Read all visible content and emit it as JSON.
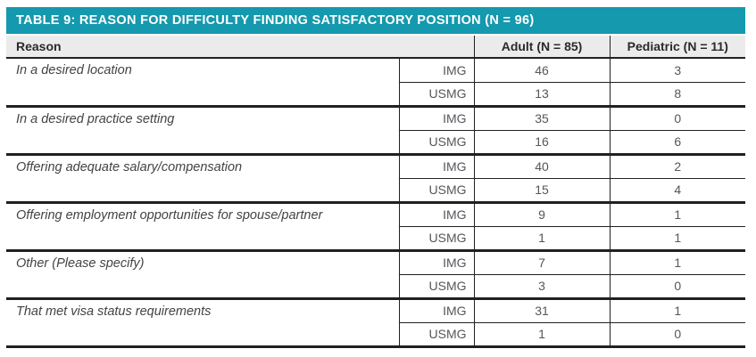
{
  "table": {
    "title": "TABLE 9: REASON FOR DIFFICULTY FINDING SATISFACTORY POSITION (N = 96)",
    "headers": {
      "reason": "Reason",
      "adult": "Adult (N = 85)",
      "pediatric": "Pediatric (N = 11)"
    },
    "type_labels": {
      "img": "IMG",
      "usmg": "USMG"
    },
    "rows": [
      {
        "reason": "In a desired location",
        "img_adult": "46",
        "img_pediatric": "3",
        "usmg_adult": "13",
        "usmg_pediatric": "8"
      },
      {
        "reason": "In a desired practice setting",
        "img_adult": "35",
        "img_pediatric": "0",
        "usmg_adult": "16",
        "usmg_pediatric": "6"
      },
      {
        "reason": "Offering adequate salary/compensation",
        "img_adult": "40",
        "img_pediatric": "2",
        "usmg_adult": "15",
        "usmg_pediatric": "4"
      },
      {
        "reason": "Offering employment opportunities for spouse/partner",
        "img_adult": "9",
        "img_pediatric": "1",
        "usmg_adult": "1",
        "usmg_pediatric": "1"
      },
      {
        "reason": "Other (Please specify)",
        "img_adult": "7",
        "img_pediatric": "1",
        "usmg_adult": "3",
        "usmg_pediatric": "0"
      },
      {
        "reason": "That met visa status requirements",
        "img_adult": "31",
        "img_pediatric": "1",
        "usmg_adult": "1",
        "usmg_pediatric": "0"
      }
    ]
  },
  "colors": {
    "teal_accent": "#1499ae",
    "header_row_bg": "#ebebeb",
    "border_dark": "#231f20",
    "header_text": "#2a2a2c",
    "body_text": "#55565a",
    "title_text": "#ffffff"
  }
}
